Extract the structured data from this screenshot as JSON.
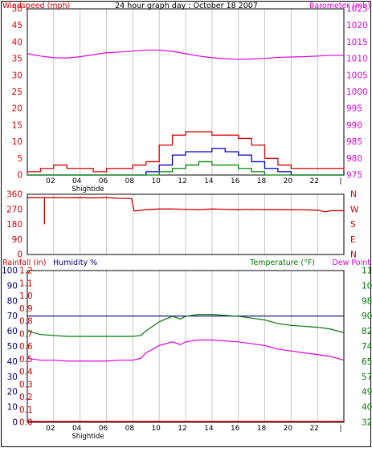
{
  "title": "24 hour graph day : October 18 2007",
  "colors": {
    "wind": "#dd0000",
    "gust": "#0000cc",
    "green": "#008800",
    "baro": "#dd00dd",
    "dir": "#cc0000",
    "rain": "#cc0000",
    "humidity": "#000080",
    "temp": "#007700",
    "dew": "#dd00dd",
    "grid": "#c8c8c8",
    "frame": "#000000"
  },
  "xaxis": {
    "ticks": [
      "02",
      "04",
      "06",
      "08",
      "10",
      "12",
      "14",
      "16",
      "18",
      "20",
      "22",
      "|"
    ],
    "annotation": "Shightide"
  },
  "chart_data": [
    {
      "type": "line",
      "name": "wind-baro",
      "left_label": "Windspeed (mph)",
      "right_label": "Barometer (mb)",
      "title": "24 hour graph day : October 18 2007",
      "ylim_left": [
        0,
        50
      ],
      "yticks_left": [
        "50",
        "45",
        "40",
        "35",
        "30",
        "25",
        "20",
        "15",
        "10",
        "5",
        "0"
      ],
      "ylim_right": [
        975,
        1025
      ],
      "yticks_right": [
        "1025",
        "1020",
        "1015",
        "1010",
        "1005",
        "1000",
        "995",
        "990",
        "985",
        "980",
        "975"
      ],
      "x": [
        0,
        1,
        2,
        3,
        4,
        5,
        6,
        7,
        8,
        9,
        10,
        11,
        12,
        13,
        14,
        15,
        16,
        17,
        18,
        19,
        20,
        21,
        22,
        23,
        24
      ],
      "series": [
        {
          "color_key": "wind",
          "values": [
            1,
            2,
            3,
            2,
            2,
            1,
            2,
            2,
            3,
            4,
            9,
            12,
            13,
            13,
            12,
            12,
            11,
            9,
            5,
            3,
            2,
            2,
            2,
            2,
            3
          ]
        },
        {
          "color_key": "gust",
          "values": [
            0,
            0,
            0,
            0,
            0,
            0,
            0,
            0,
            0,
            1,
            3,
            6,
            7,
            7,
            8,
            7,
            6,
            4,
            2,
            1,
            0,
            0,
            0,
            0,
            1
          ]
        },
        {
          "color_key": "green",
          "values": [
            0,
            0,
            0,
            0,
            0,
            0,
            0,
            0,
            0,
            0,
            1,
            2,
            3,
            4,
            3,
            3,
            2,
            1,
            0,
            0,
            0,
            0,
            0,
            0,
            0
          ]
        },
        {
          "color_key": "baro",
          "values": [
            1011.5,
            1010.8,
            1010.3,
            1010.2,
            1010.6,
            1011.2,
            1011.8,
            1012.0,
            1012.3,
            1012.6,
            1012.6,
            1012.2,
            1011.5,
            1010.8,
            1010.3,
            1010.0,
            1009.8,
            1009.9,
            1010.1,
            1010.4,
            1010.5,
            1010.6,
            1010.8,
            1011.0,
            1011.0
          ]
        }
      ]
    },
    {
      "type": "line",
      "name": "direction",
      "ylim": [
        0,
        360
      ],
      "yticks_left": [
        "360",
        "270",
        "180",
        "90",
        "0"
      ],
      "yticks_right": [
        "N",
        "W",
        "S",
        "E",
        "N"
      ],
      "x": [
        0,
        1,
        2,
        3,
        4,
        5,
        6,
        7,
        7.9,
        8.1,
        9,
        10,
        11,
        12,
        13,
        14,
        15,
        16,
        17,
        18,
        19,
        20,
        21,
        22,
        22.6,
        23,
        24
      ],
      "values": [
        340,
        340,
        340,
        339,
        340,
        338,
        340,
        336,
        335,
        260,
        268,
        272,
        272,
        270,
        268,
        272,
        270,
        268,
        270,
        268,
        268,
        268,
        267,
        265,
        255,
        262,
        262
      ],
      "spike": {
        "x": 1.3,
        "from": 340,
        "to": 180
      }
    },
    {
      "type": "line",
      "name": "rain-humidity-temp",
      "left_label": "Rainfall (in)",
      "mid_label": "Humidity %",
      "right_label": "Temperature (°F)",
      "right_label_2": "Dew Point",
      "yticks_rain": [
        "1.2",
        "1.1",
        "1.0",
        "0.9",
        "0.8",
        "0.7",
        "0.6",
        "0.5",
        "0.4",
        "0.3",
        "0.2",
        "0.1",
        "0.0"
      ],
      "yticks_hum": [
        "100",
        "90",
        "80",
        "70",
        "60",
        "50",
        "40",
        "30",
        "20",
        "10",
        "0"
      ],
      "ylim_right": [
        32,
        115
      ],
      "yticks_temp": [
        "115",
        "107",
        "98",
        "90",
        "82",
        "74",
        "65",
        "57",
        "49",
        "40",
        "32"
      ],
      "x": [
        0,
        1,
        2,
        3,
        4,
        5,
        6,
        7,
        8,
        8.6,
        9,
        10,
        11,
        11.6,
        12,
        13,
        14,
        15,
        16,
        17,
        18,
        19,
        20,
        21,
        22,
        23,
        24
      ],
      "series": [
        {
          "color_key": "humidity",
          "values": [
            70,
            70,
            70,
            70,
            70,
            70,
            70,
            70,
            70,
            70,
            70,
            70,
            70,
            70,
            70,
            70,
            70,
            70,
            70,
            70,
            70,
            70,
            70,
            70,
            70,
            70,
            70
          ]
        },
        {
          "color_key": "temp",
          "values": [
            82,
            80,
            79.5,
            79,
            79,
            79,
            79,
            79,
            79,
            79.5,
            82,
            87,
            90,
            88.5,
            90,
            91,
            91,
            90.5,
            90,
            89,
            88,
            86,
            85,
            84.5,
            84,
            83,
            81
          ]
        },
        {
          "color_key": "dew",
          "values": [
            67,
            66,
            66,
            65.5,
            65.5,
            65.5,
            65.5,
            66,
            66,
            67,
            70,
            74,
            76,
            74.5,
            76,
            77,
            77,
            76.5,
            76,
            75,
            74,
            72,
            71,
            70,
            69,
            68,
            66
          ]
        },
        {
          "color_key": "rain",
          "values": [
            0,
            0,
            0,
            0,
            0,
            0,
            0,
            0,
            0,
            0,
            0,
            0,
            0,
            0,
            0,
            0,
            0,
            0,
            0,
            0,
            0,
            0,
            0,
            0,
            0,
            0,
            0
          ]
        }
      ]
    }
  ]
}
